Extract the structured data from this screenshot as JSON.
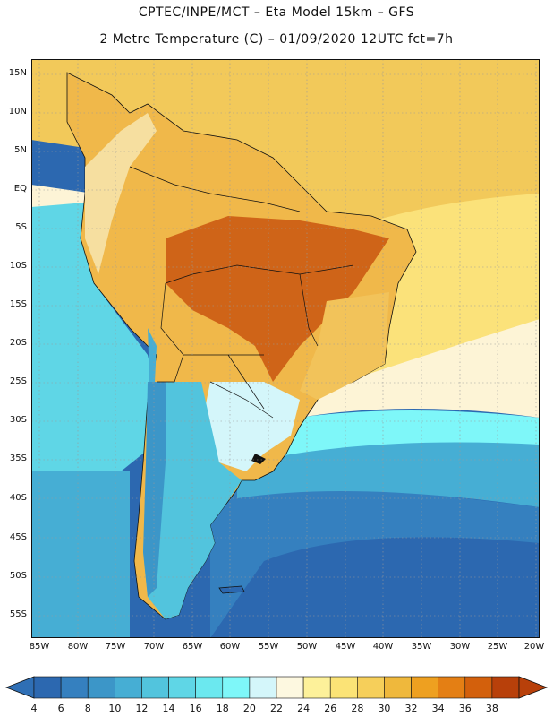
{
  "title": {
    "line1": "CPTEC/INPE/MCT –  Eta Model 15km – GFS",
    "line2": "2 Metre Temperature (C) – 01/09/2020 12UTC fct=7h"
  },
  "axes": {
    "lat_labels": [
      "15N",
      "10N",
      "5N",
      "EQ",
      "5S",
      "10S",
      "15S",
      "20S",
      "25S",
      "30S",
      "35S",
      "40S",
      "45S",
      "50S",
      "55S"
    ],
    "lon_labels": [
      "85W",
      "80W",
      "75W",
      "70W",
      "65W",
      "60W",
      "55W",
      "50W",
      "45W",
      "40W",
      "35W",
      "30W",
      "25W",
      "20W"
    ]
  },
  "colorbar": {
    "labels": [
      "4",
      "6",
      "8",
      "10",
      "12",
      "14",
      "16",
      "18",
      "20",
      "22",
      "24",
      "26",
      "28",
      "30",
      "32",
      "34",
      "36",
      "38"
    ],
    "low_color": "#2f6fb5",
    "high_color": "#b8400a",
    "colors": [
      "#2c68b0",
      "#3580bf",
      "#3c96c8",
      "#46aed4",
      "#52c4dd",
      "#5fd6e6",
      "#6be8ef",
      "#7ef7f9",
      "#d4f6fa",
      "#fdf8e0",
      "#fdf19a",
      "#fbe376",
      "#f6cf5a",
      "#efb83c",
      "#eea020",
      "#e47f14",
      "#d3600c",
      "#b8400a"
    ]
  },
  "map": {
    "ocean_regions": [
      {
        "name": "north-atlantic",
        "color": "#f2c95a"
      },
      {
        "name": "tropical-atlantic",
        "color": "#fbe27a"
      },
      {
        "name": "south-atlantic-warm",
        "color": "#fdf4d6"
      },
      {
        "name": "south-atlantic-mid",
        "color": "#7ef7f9"
      },
      {
        "name": "south-atlantic-cold",
        "color": "#3c96c8"
      },
      {
        "name": "deep-south",
        "color": "#2c68b0"
      },
      {
        "name": "pacific-north",
        "color": "#5fd6e6"
      },
      {
        "name": "pacific-mid",
        "color": "#46aed4"
      }
    ],
    "land_colors": {
      "amazon": "#f0b84a",
      "hot-core": "#cf6418",
      "andes-north": "#f6dfa0",
      "andes-south": "#3c96c8",
      "patagonia": "#52c4dd",
      "pampas": "#d4f6fa",
      "brazil-east": "#f2c35a"
    }
  }
}
